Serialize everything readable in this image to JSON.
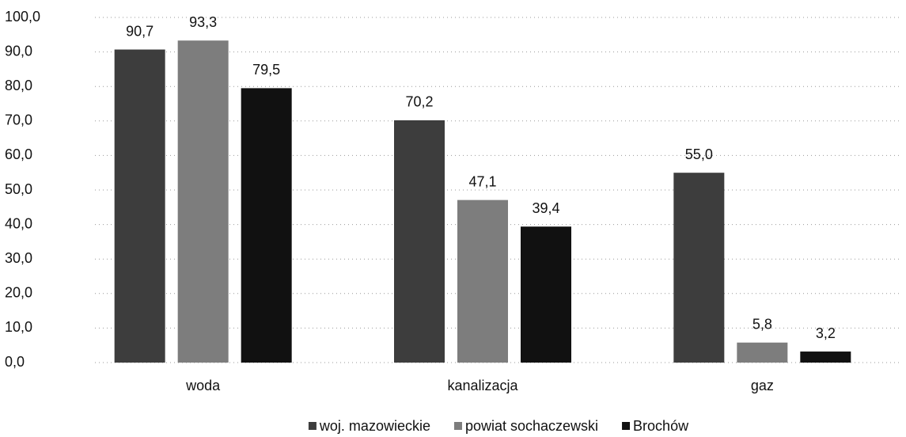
{
  "chart_data": {
    "type": "bar",
    "categories": [
      "woda",
      "kanalizacja",
      "gaz"
    ],
    "series": [
      {
        "name": "woj. mazowieckie",
        "color": "#3d3d3d",
        "values": [
          90.7,
          70.2,
          55.0
        ],
        "value_labels": [
          "90,7",
          "70,2",
          "55,0"
        ]
      },
      {
        "name": "powiat sochaczewski",
        "color": "#7d7d7d",
        "values": [
          93.3,
          47.1,
          5.8
        ],
        "value_labels": [
          "93,3",
          "47,1",
          "5,8"
        ]
      },
      {
        "name": "Brochów",
        "color": "#111111",
        "values": [
          79.5,
          39.4,
          3.2
        ],
        "value_labels": [
          "79,5",
          "39,4",
          "3,2"
        ]
      }
    ],
    "ylim": [
      0,
      100
    ],
    "yticks": [
      {
        "value": 0,
        "label": "0,0"
      },
      {
        "value": 10,
        "label": "10,0"
      },
      {
        "value": 20,
        "label": "20,0"
      },
      {
        "value": 30,
        "label": "30,0"
      },
      {
        "value": 40,
        "label": "40,0"
      },
      {
        "value": 50,
        "label": "50,0"
      },
      {
        "value": 60,
        "label": "60,0"
      },
      {
        "value": 70,
        "label": "70,0"
      },
      {
        "value": 80,
        "label": "80,0"
      },
      {
        "value": 90,
        "label": "90,0"
      },
      {
        "value": 100,
        "label": {
          "value": 100,
          "label": "100,0"
        }
      }
    ],
    "grid": true,
    "legend": "bottom"
  }
}
